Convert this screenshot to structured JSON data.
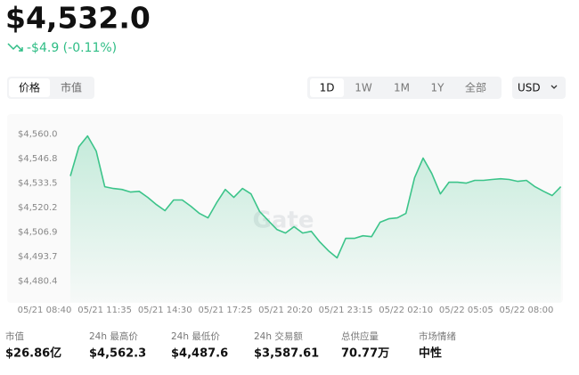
{
  "price": "$4,532.0",
  "change": "-$4.9 (-0.11%)",
  "tabs": [
    "价格",
    "市值"
  ],
  "ranges": [
    "1D",
    "1W",
    "1M",
    "1Y",
    "全部"
  ],
  "currency": "USD",
  "chart_data": {
    "type": "line",
    "watermark": "Gate",
    "categories": [
      "05/21 08:40",
      null,
      null,
      null,
      null,
      null,
      null,
      "05/21 11:35",
      null,
      null,
      null,
      null,
      null,
      null,
      "05/21 14:30",
      null,
      null,
      null,
      null,
      null,
      null,
      "05/21 17:25",
      null,
      null,
      null,
      null,
      null,
      null,
      "05/21 20:20",
      null,
      null,
      null,
      null,
      null,
      null,
      "05/21 23:15",
      null,
      null,
      null,
      null,
      null,
      null,
      "05/22 02:10",
      null,
      null,
      null,
      null,
      null,
      null,
      "05/22 05:05",
      null,
      null,
      null,
      null,
      null,
      null,
      "05/22 08:00",
      null,
      null,
      null,
      null
    ],
    "series": [
      {
        "color": "#3cc48a",
        "values": [
          null,
          null,
          null,
          4537.3,
          4553.2,
          4559,
          4550.8,
          4531.5,
          4530.5,
          4530,
          4528.6,
          4529,
          4525.7,
          4521.8,
          4518.5,
          4524.3,
          4524.3,
          4520.9,
          4517,
          4514.6,
          4522.8,
          4530,
          4525.7,
          4530.5,
          4527.6,
          4518,
          4513.1,
          4508.3,
          4506.4,
          4509.8,
          4506.4,
          4507.3,
          4501.5,
          4496.7,
          4492.9,
          4503.5,
          4503.5,
          4504.9,
          4504.4,
          4512.2,
          4514.1,
          4514.6,
          4517,
          4536.3,
          4547,
          4538.7,
          4527.6,
          4533.9,
          4533.9,
          4533.4,
          4534.9,
          4534.9,
          4535.4,
          4535.8,
          4535.4,
          4534.4,
          4534.9,
          4531.5,
          4529,
          4526.7,
          4531.5
        ]
      }
    ],
    "ylim": [
      4476,
      4568
    ],
    "yticks": [
      {
        "value": 4480.4,
        "label": "$4,480.4"
      },
      {
        "value": 4493.7,
        "label": "$4,493.7"
      },
      {
        "value": 4506.9,
        "label": "$4,506.9"
      },
      {
        "value": 4520.2,
        "label": "$4,520.2"
      },
      {
        "value": 4533.5,
        "label": "$4,533.5"
      },
      {
        "value": 4546.8,
        "label": "$4,546.8"
      },
      {
        "value": 4560.0,
        "label": "$4,560.0"
      }
    ]
  },
  "stats": [
    {
      "label": "市值",
      "value": "$26.86亿"
    },
    {
      "label": "24h 最高价",
      "value": "$4,562.3"
    },
    {
      "label": "24h 最低价",
      "value": "$4,487.6"
    },
    {
      "label": "24h 交易额",
      "value": "$3,587.61"
    },
    {
      "label": "总供应量",
      "value": "70.77万"
    },
    {
      "label": "市场情绪",
      "value": "中性"
    }
  ]
}
